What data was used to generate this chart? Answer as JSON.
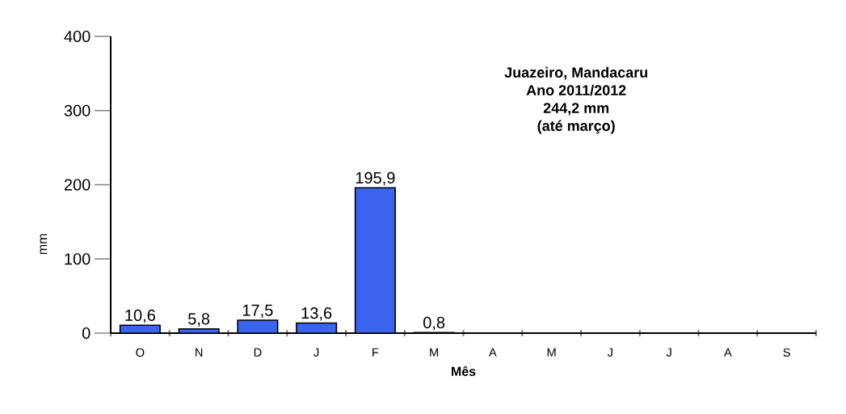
{
  "chart_data": {
    "type": "bar",
    "title": "Juazeiro, Mandacaru",
    "subtitle": "Ano 2011/2012",
    "annotations": [
      "244,2 mm",
      "(até março)"
    ],
    "xlabel": "Mês",
    "ylabel": "mm",
    "categories": [
      "O",
      "N",
      "D",
      "J",
      "F",
      "M",
      "A",
      "M",
      "J",
      "J",
      "A",
      "S"
    ],
    "values": [
      10.6,
      5.8,
      17.5,
      13.6,
      195.9,
      0.8,
      null,
      null,
      null,
      null,
      null,
      null
    ],
    "value_labels": [
      "10,6",
      "5,8",
      "17,5",
      "13,6",
      "195,9",
      "0,8",
      null,
      null,
      null,
      null,
      null,
      null
    ],
    "color": "#3b64f0",
    "ylim": [
      0,
      400
    ],
    "yticks": [
      0,
      100,
      200,
      300,
      400
    ],
    "grid": false
  }
}
